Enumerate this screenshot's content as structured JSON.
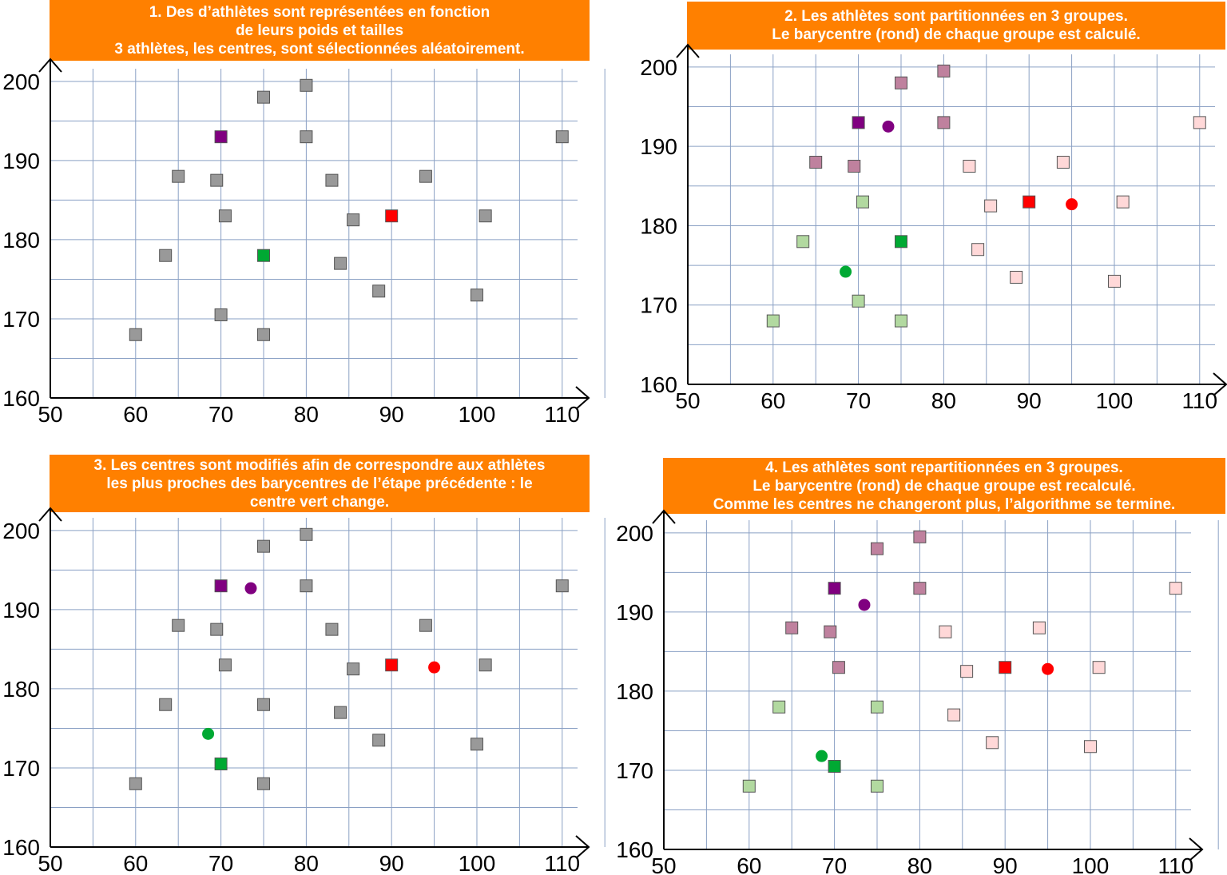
{
  "colors": {
    "banner": "#ff8000",
    "grid": "#8aa0c4",
    "point_grey": "#999999",
    "purple_center": "#800080",
    "red_center": "#ff0000",
    "green_center": "#00a933",
    "purple_member": "#bf819e",
    "pink_member": "#ffd8d8",
    "green_member": "#b2d9a0"
  },
  "chart_data": [
    {
      "type": "scatter",
      "title_lines": [
        "1. Des d’athlètes sont représentées en fonction",
        "de leurs poids et tailles",
        "3 athlètes, les centres, sont sélectionnées aléatoirement."
      ],
      "xlim": [
        50,
        110
      ],
      "ylim": [
        160,
        200
      ],
      "grid": true,
      "x_ticks": [
        "50",
        "60",
        "70",
        "80",
        "90",
        "100",
        "110"
      ],
      "y_ticks": [
        "160",
        "170",
        "180",
        "190",
        "200"
      ],
      "points": [
        {
          "x": 75,
          "y": 198,
          "role": "athlete",
          "color": "#999999"
        },
        {
          "x": 80,
          "y": 199.5,
          "role": "athlete",
          "color": "#999999"
        },
        {
          "x": 70,
          "y": 193,
          "role": "center",
          "color": "#800080"
        },
        {
          "x": 80,
          "y": 193,
          "role": "athlete",
          "color": "#999999"
        },
        {
          "x": 110,
          "y": 193,
          "role": "athlete",
          "color": "#999999"
        },
        {
          "x": 65,
          "y": 188,
          "role": "athlete",
          "color": "#999999"
        },
        {
          "x": 69.5,
          "y": 187.5,
          "role": "athlete",
          "color": "#999999"
        },
        {
          "x": 83,
          "y": 187.5,
          "role": "athlete",
          "color": "#999999"
        },
        {
          "x": 94,
          "y": 188,
          "role": "athlete",
          "color": "#999999"
        },
        {
          "x": 70.5,
          "y": 183,
          "role": "athlete",
          "color": "#999999"
        },
        {
          "x": 85.5,
          "y": 182.5,
          "role": "athlete",
          "color": "#999999"
        },
        {
          "x": 90,
          "y": 183,
          "role": "center",
          "color": "#ff0000"
        },
        {
          "x": 101,
          "y": 183,
          "role": "athlete",
          "color": "#999999"
        },
        {
          "x": 63.5,
          "y": 178,
          "role": "athlete",
          "color": "#999999"
        },
        {
          "x": 75,
          "y": 178,
          "role": "center",
          "color": "#00a933"
        },
        {
          "x": 84,
          "y": 177,
          "role": "athlete",
          "color": "#999999"
        },
        {
          "x": 88.5,
          "y": 173.5,
          "role": "athlete",
          "color": "#999999"
        },
        {
          "x": 100,
          "y": 173,
          "role": "athlete",
          "color": "#999999"
        },
        {
          "x": 70,
          "y": 170.5,
          "role": "athlete",
          "color": "#999999"
        },
        {
          "x": 60,
          "y": 168,
          "role": "athlete",
          "color": "#999999"
        },
        {
          "x": 75,
          "y": 168,
          "role": "athlete",
          "color": "#999999"
        }
      ]
    },
    {
      "type": "scatter",
      "title_lines": [
        "2. Les athlètes sont partitionnées en 3 groupes.",
        "Le barycentre (rond) de chaque groupe est calculé."
      ],
      "xlim": [
        50,
        110
      ],
      "ylim": [
        160,
        200
      ],
      "grid": true,
      "x_ticks": [
        "50",
        "60",
        "70",
        "80",
        "90",
        "100",
        "110"
      ],
      "y_ticks": [
        "160",
        "170",
        "180",
        "190",
        "200"
      ],
      "points": [
        {
          "x": 75,
          "y": 198,
          "role": "athlete",
          "color": "#bf819e"
        },
        {
          "x": 80,
          "y": 199.5,
          "role": "athlete",
          "color": "#bf819e"
        },
        {
          "x": 70,
          "y": 193,
          "role": "center",
          "color": "#800080"
        },
        {
          "x": 80,
          "y": 193,
          "role": "athlete",
          "color": "#bf819e"
        },
        {
          "x": 110,
          "y": 193,
          "role": "athlete",
          "color": "#ffd8d8"
        },
        {
          "x": 65,
          "y": 188,
          "role": "athlete",
          "color": "#bf819e"
        },
        {
          "x": 69.5,
          "y": 187.5,
          "role": "athlete",
          "color": "#bf819e"
        },
        {
          "x": 83,
          "y": 187.5,
          "role": "athlete",
          "color": "#ffd8d8"
        },
        {
          "x": 94,
          "y": 188,
          "role": "athlete",
          "color": "#ffd8d8"
        },
        {
          "x": 70.5,
          "y": 183,
          "role": "athlete",
          "color": "#b2d9a0"
        },
        {
          "x": 85.5,
          "y": 182.5,
          "role": "athlete",
          "color": "#ffd8d8"
        },
        {
          "x": 90,
          "y": 183,
          "role": "center",
          "color": "#ff0000"
        },
        {
          "x": 101,
          "y": 183,
          "role": "athlete",
          "color": "#ffd8d8"
        },
        {
          "x": 63.5,
          "y": 178,
          "role": "athlete",
          "color": "#b2d9a0"
        },
        {
          "x": 75,
          "y": 178,
          "role": "center",
          "color": "#00a933"
        },
        {
          "x": 84,
          "y": 177,
          "role": "athlete",
          "color": "#ffd8d8"
        },
        {
          "x": 88.5,
          "y": 173.5,
          "role": "athlete",
          "color": "#ffd8d8"
        },
        {
          "x": 100,
          "y": 173,
          "role": "athlete",
          "color": "#ffd8d8"
        },
        {
          "x": 70,
          "y": 170.5,
          "role": "athlete",
          "color": "#b2d9a0"
        },
        {
          "x": 60,
          "y": 168,
          "role": "athlete",
          "color": "#b2d9a0"
        },
        {
          "x": 75,
          "y": 168,
          "role": "athlete",
          "color": "#b2d9a0"
        },
        {
          "x": 73.5,
          "y": 192.5,
          "role": "barycenter",
          "color": "#800080"
        },
        {
          "x": 95,
          "y": 182.7,
          "role": "barycenter",
          "color": "#ff0000"
        },
        {
          "x": 68.5,
          "y": 174.2,
          "role": "barycenter",
          "color": "#00a933"
        }
      ]
    },
    {
      "type": "scatter",
      "title_lines": [
        "3. Les centres sont modifiés afin de correspondre aux athlètes",
        "les plus proches des barycentres de l’étape précédente : le",
        "centre vert change."
      ],
      "xlim": [
        50,
        110
      ],
      "ylim": [
        160,
        200
      ],
      "grid": true,
      "x_ticks": [
        "50",
        "60",
        "70",
        "80",
        "90",
        "100",
        "110"
      ],
      "y_ticks": [
        "160",
        "170",
        "180",
        "190",
        "200"
      ],
      "points": [
        {
          "x": 75,
          "y": 198,
          "role": "athlete",
          "color": "#999999"
        },
        {
          "x": 80,
          "y": 199.5,
          "role": "athlete",
          "color": "#999999"
        },
        {
          "x": 70,
          "y": 193,
          "role": "center",
          "color": "#800080"
        },
        {
          "x": 80,
          "y": 193,
          "role": "athlete",
          "color": "#999999"
        },
        {
          "x": 110,
          "y": 193,
          "role": "athlete",
          "color": "#999999"
        },
        {
          "x": 65,
          "y": 188,
          "role": "athlete",
          "color": "#999999"
        },
        {
          "x": 69.5,
          "y": 187.5,
          "role": "athlete",
          "color": "#999999"
        },
        {
          "x": 83,
          "y": 187.5,
          "role": "athlete",
          "color": "#999999"
        },
        {
          "x": 94,
          "y": 188,
          "role": "athlete",
          "color": "#999999"
        },
        {
          "x": 70.5,
          "y": 183,
          "role": "athlete",
          "color": "#999999"
        },
        {
          "x": 85.5,
          "y": 182.5,
          "role": "athlete",
          "color": "#999999"
        },
        {
          "x": 90,
          "y": 183,
          "role": "center",
          "color": "#ff0000"
        },
        {
          "x": 101,
          "y": 183,
          "role": "athlete",
          "color": "#999999"
        },
        {
          "x": 63.5,
          "y": 178,
          "role": "athlete",
          "color": "#999999"
        },
        {
          "x": 75,
          "y": 178,
          "role": "athlete",
          "color": "#999999"
        },
        {
          "x": 84,
          "y": 177,
          "role": "athlete",
          "color": "#999999"
        },
        {
          "x": 88.5,
          "y": 173.5,
          "role": "athlete",
          "color": "#999999"
        },
        {
          "x": 100,
          "y": 173,
          "role": "athlete",
          "color": "#999999"
        },
        {
          "x": 70,
          "y": 170.5,
          "role": "center",
          "color": "#00a933"
        },
        {
          "x": 60,
          "y": 168,
          "role": "athlete",
          "color": "#999999"
        },
        {
          "x": 75,
          "y": 168,
          "role": "athlete",
          "color": "#999999"
        },
        {
          "x": 73.5,
          "y": 192.7,
          "role": "barycenter",
          "color": "#800080"
        },
        {
          "x": 95,
          "y": 182.7,
          "role": "barycenter",
          "color": "#ff0000"
        },
        {
          "x": 68.5,
          "y": 174.3,
          "role": "barycenter",
          "color": "#00a933"
        }
      ]
    },
    {
      "type": "scatter",
      "title_lines": [
        "4. Les athlètes sont repartitionnées en 3 groupes.",
        "Le barycentre (rond) de chaque groupe est recalculé.",
        "Comme les centres ne changeront plus, l’algorithme se termine."
      ],
      "xlim": [
        50,
        110
      ],
      "ylim": [
        160,
        200
      ],
      "grid": true,
      "x_ticks": [
        "50",
        "60",
        "70",
        "80",
        "90",
        "100",
        "110"
      ],
      "y_ticks": [
        "160",
        "170",
        "180",
        "190",
        "200"
      ],
      "points": [
        {
          "x": 75,
          "y": 198,
          "role": "athlete",
          "color": "#bf819e"
        },
        {
          "x": 80,
          "y": 199.5,
          "role": "athlete",
          "color": "#bf819e"
        },
        {
          "x": 70,
          "y": 193,
          "role": "center",
          "color": "#800080"
        },
        {
          "x": 80,
          "y": 193,
          "role": "athlete",
          "color": "#bf819e"
        },
        {
          "x": 110,
          "y": 193,
          "role": "athlete",
          "color": "#ffd8d8"
        },
        {
          "x": 65,
          "y": 188,
          "role": "athlete",
          "color": "#bf819e"
        },
        {
          "x": 69.5,
          "y": 187.5,
          "role": "athlete",
          "color": "#bf819e"
        },
        {
          "x": 83,
          "y": 187.5,
          "role": "athlete",
          "color": "#ffd8d8"
        },
        {
          "x": 94,
          "y": 188,
          "role": "athlete",
          "color": "#ffd8d8"
        },
        {
          "x": 70.5,
          "y": 183,
          "role": "athlete",
          "color": "#bf819e"
        },
        {
          "x": 85.5,
          "y": 182.5,
          "role": "athlete",
          "color": "#ffd8d8"
        },
        {
          "x": 90,
          "y": 183,
          "role": "center",
          "color": "#ff0000"
        },
        {
          "x": 101,
          "y": 183,
          "role": "athlete",
          "color": "#ffd8d8"
        },
        {
          "x": 63.5,
          "y": 178,
          "role": "athlete",
          "color": "#b2d9a0"
        },
        {
          "x": 75,
          "y": 178,
          "role": "athlete",
          "color": "#b2d9a0"
        },
        {
          "x": 84,
          "y": 177,
          "role": "athlete",
          "color": "#ffd8d8"
        },
        {
          "x": 88.5,
          "y": 173.5,
          "role": "athlete",
          "color": "#ffd8d8"
        },
        {
          "x": 100,
          "y": 173,
          "role": "athlete",
          "color": "#ffd8d8"
        },
        {
          "x": 70,
          "y": 170.5,
          "role": "center",
          "color": "#00a933"
        },
        {
          "x": 60,
          "y": 168,
          "role": "athlete",
          "color": "#b2d9a0"
        },
        {
          "x": 75,
          "y": 168,
          "role": "athlete",
          "color": "#b2d9a0"
        },
        {
          "x": 73.5,
          "y": 190.9,
          "role": "barycenter",
          "color": "#800080"
        },
        {
          "x": 95,
          "y": 182.8,
          "role": "barycenter",
          "color": "#ff0000"
        },
        {
          "x": 68.5,
          "y": 171.8,
          "role": "barycenter",
          "color": "#00a933"
        }
      ]
    }
  ]
}
